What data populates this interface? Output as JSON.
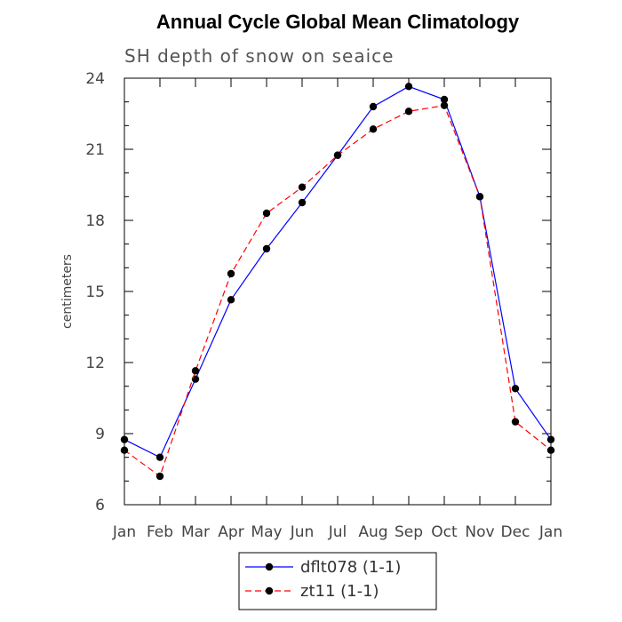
{
  "chart_data": {
    "type": "line",
    "title": "Annual Cycle Global Mean Climatology",
    "subtitle": "SH depth of snow on seaice",
    "xlabel": "",
    "ylabel": "centimeters",
    "categories": [
      "Jan",
      "Feb",
      "Mar",
      "Apr",
      "May",
      "Jun",
      "Jul",
      "Aug",
      "Sep",
      "Oct",
      "Nov",
      "Dec",
      "Jan"
    ],
    "ylim": [
      6,
      24
    ],
    "yticks": [
      6,
      9,
      12,
      15,
      18,
      21,
      24
    ],
    "grid": false,
    "legend_position": "bottom-center",
    "series": [
      {
        "name": "dflt078 (1-1)",
        "color": "#0000ff",
        "dash": "solid",
        "marker": "circle",
        "values": [
          8.75,
          8.0,
          11.3,
          14.65,
          16.8,
          18.75,
          20.75,
          22.8,
          23.65,
          23.1,
          19.0,
          10.9,
          8.75
        ]
      },
      {
        "name": "zt11 (1-1)",
        "color": "#ff0000",
        "dash": "dashed",
        "marker": "circle",
        "values": [
          8.3,
          7.2,
          11.65,
          15.75,
          18.3,
          19.4,
          20.75,
          21.85,
          22.6,
          22.85,
          19.0,
          9.5,
          8.3
        ]
      }
    ]
  }
}
